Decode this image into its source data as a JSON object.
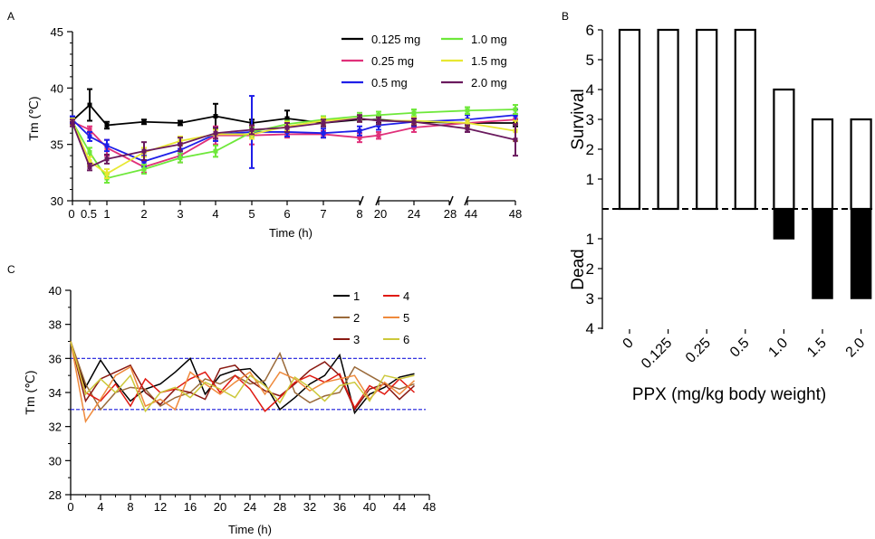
{
  "colors": {
    "axis": "#000000",
    "panel_c_ref_line": "#1a1adc",
    "survival_bar": "#ffffff",
    "dead_bar": "#000000"
  },
  "chart_data": [
    {
      "panel_label": "A",
      "type": "line",
      "xlabel": "Time (h)",
      "ylabel": "Tm (℃)",
      "ylim": [
        30,
        45
      ],
      "yticks": [
        30,
        35,
        40,
        45
      ],
      "x_tick_labels": [
        "0",
        "0.5",
        "1",
        "2",
        "3",
        "4",
        "5",
        "6",
        "7",
        "8",
        "20",
        "24",
        "28",
        "44",
        "48"
      ],
      "axis_breaks": [
        "8-20",
        "28-44"
      ],
      "legend_position": "top-right",
      "x": [
        0,
        0.5,
        1,
        2,
        3,
        4,
        5,
        6,
        7,
        8,
        20,
        24,
        44,
        48
      ],
      "series": [
        {
          "name": "0.125 mg",
          "color": "#000000",
          "values": [
            37.1,
            38.5,
            36.7,
            37.0,
            36.9,
            37.5,
            36.9,
            37.3,
            36.9,
            37.2,
            37.2,
            37.0,
            36.9,
            36.9
          ],
          "error": [
            0.3,
            1.4,
            0.3,
            0.2,
            0.2,
            1.1,
            0.3,
            0.7,
            0.3,
            0.2,
            0.3,
            0.4,
            0.3,
            0.3
          ]
        },
        {
          "name": "0.25 mg",
          "color": "#e0307a",
          "values": [
            37.0,
            36.3,
            34.7,
            33.0,
            34.0,
            35.8,
            35.8,
            35.9,
            35.9,
            35.6,
            35.8,
            36.5,
            36.9,
            37.2
          ],
          "error": [
            0.3,
            0.3,
            0.7,
            0.5,
            0.6,
            0.8,
            0.8,
            0.3,
            0.3,
            0.4,
            0.3,
            0.4,
            0.3,
            0.4
          ]
        },
        {
          "name": "0.5 mg",
          "color": "#1f1fe8",
          "values": [
            37.2,
            35.7,
            34.9,
            33.5,
            34.5,
            35.9,
            36.1,
            36.1,
            36.0,
            36.2,
            36.7,
            37.0,
            37.2,
            37.6
          ],
          "error": [
            0.3,
            0.4,
            0.5,
            0.5,
            0.6,
            0.6,
            3.2,
            0.4,
            0.4,
            0.4,
            0.4,
            0.4,
            0.4,
            0.5
          ]
        },
        {
          "name": "1.0 mg",
          "color": "#6ee83a",
          "values": [
            37.0,
            34.3,
            32.0,
            32.8,
            33.8,
            34.4,
            36.1,
            36.8,
            37.2,
            37.5,
            37.6,
            37.8,
            38.0,
            38.1
          ],
          "error": [
            0.3,
            0.4,
            0.4,
            0.4,
            0.4,
            0.5,
            0.4,
            0.3,
            0.3,
            0.3,
            0.3,
            0.3,
            0.3,
            0.4
          ]
        },
        {
          "name": "1.5 mg",
          "color": "#e8e832",
          "values": [
            37.0,
            33.5,
            32.4,
            34.3,
            35.3,
            35.9,
            35.9,
            36.6,
            37.1,
            37.3,
            37.1,
            37.1,
            36.9,
            36.2
          ],
          "error": [
            0.3,
            0.4,
            0.4,
            0.4,
            0.4,
            0.4,
            0.4,
            0.4,
            0.3,
            0.3,
            0.3,
            0.3,
            0.3,
            0.9
          ]
        },
        {
          "name": "2.0 mg",
          "color": "#6a1a5e",
          "values": [
            36.9,
            33.0,
            33.7,
            34.4,
            35.0,
            36.0,
            36.3,
            36.5,
            36.9,
            37.3,
            37.1,
            37.0,
            36.4,
            35.4
          ],
          "error": [
            0.3,
            0.3,
            0.4,
            0.8,
            0.6,
            0.5,
            0.4,
            0.4,
            0.3,
            0.3,
            0.3,
            0.3,
            0.3,
            1.4
          ]
        }
      ]
    },
    {
      "panel_label": "B",
      "type": "bar",
      "xlabel": "PPX (mg/kg body weight)",
      "categories": [
        "0",
        "0.125",
        "0.25",
        "0.5",
        "1.0",
        "1.5",
        "2.0"
      ],
      "upper_label": "Survival",
      "lower_label": "Dead",
      "upper_ticks": [
        1,
        2,
        3,
        4,
        5,
        6
      ],
      "lower_ticks": [
        1,
        2,
        3,
        4
      ],
      "ylim_upper": [
        0,
        6
      ],
      "ylim_lower": [
        0,
        4
      ],
      "series": [
        {
          "name": "Survival",
          "values": [
            6,
            6,
            6,
            6,
            4,
            3,
            3
          ]
        },
        {
          "name": "Dead",
          "values": [
            0,
            0,
            0,
            0,
            1,
            3,
            3
          ]
        }
      ]
    },
    {
      "panel_label": "C",
      "type": "line",
      "xlabel": "Time (h)",
      "ylabel": "Tm (℃)",
      "xlim": [
        0,
        48
      ],
      "ylim": [
        28,
        40
      ],
      "xticks": [
        0,
        4,
        8,
        12,
        16,
        20,
        24,
        28,
        32,
        36,
        40,
        44,
        48
      ],
      "yticks": [
        28,
        30,
        32,
        34,
        36,
        38,
        40
      ],
      "reference_lines": [
        36,
        33
      ],
      "legend_position": "top-right",
      "x": [
        0,
        2,
        4,
        6,
        8,
        10,
        12,
        14,
        16,
        18,
        20,
        22,
        24,
        26,
        28,
        30,
        32,
        34,
        36,
        38,
        40,
        42,
        44,
        46
      ],
      "series": [
        {
          "name": "1",
          "color": "#000000",
          "values": [
            37.0,
            34.3,
            35.9,
            34.6,
            33.5,
            34.2,
            34.5,
            35.2,
            36.0,
            33.9,
            35.0,
            35.3,
            35.4,
            34.5,
            33.0,
            33.7,
            34.5,
            35.0,
            36.2,
            32.8,
            33.9,
            34.3,
            34.9,
            35.1
          ]
        },
        {
          "name": "2",
          "color": "#9a6a3a",
          "values": [
            37.0,
            34.5,
            33.0,
            34.0,
            34.3,
            34.2,
            33.2,
            33.7,
            34.0,
            34.8,
            34.5,
            35.0,
            34.5,
            34.7,
            36.3,
            34.0,
            33.4,
            33.8,
            34.0,
            35.5,
            35.0,
            34.5,
            34.2,
            34.5
          ]
        },
        {
          "name": "3",
          "color": "#8a1a12",
          "values": [
            37.0,
            33.5,
            34.8,
            35.2,
            35.6,
            34.0,
            33.3,
            34.2,
            34.0,
            33.6,
            35.4,
            35.6,
            34.7,
            34.1,
            33.8,
            34.5,
            35.3,
            35.8,
            35.0,
            33.0,
            34.2,
            34.5,
            33.6,
            34.4
          ]
        },
        {
          "name": "4",
          "color": "#e01a12",
          "values": [
            37.0,
            34.0,
            33.5,
            34.5,
            33.2,
            34.8,
            34.0,
            34.2,
            34.8,
            35.2,
            34.0,
            35.0,
            34.2,
            32.9,
            33.7,
            34.6,
            35.0,
            34.6,
            35.1,
            33.1,
            34.4,
            33.9,
            34.8,
            34.0
          ]
        },
        {
          "name": "5",
          "color": "#ef8a3c",
          "values": [
            37.0,
            32.3,
            33.6,
            35.0,
            35.5,
            33.2,
            33.6,
            33.0,
            35.2,
            34.5,
            33.9,
            34.6,
            35.2,
            33.9,
            35.2,
            34.8,
            34.1,
            34.6,
            34.8,
            35.0,
            33.6,
            34.6,
            33.9,
            34.7
          ]
        },
        {
          "name": "6",
          "color": "#ccc83a",
          "values": [
            37.0,
            33.9,
            34.8,
            34.0,
            35.0,
            32.9,
            34.0,
            34.3,
            33.7,
            34.6,
            34.2,
            33.7,
            35.0,
            34.4,
            33.4,
            34.9,
            34.3,
            33.5,
            34.4,
            34.6,
            33.5,
            35.0,
            34.8,
            35.0
          ]
        }
      ]
    }
  ]
}
